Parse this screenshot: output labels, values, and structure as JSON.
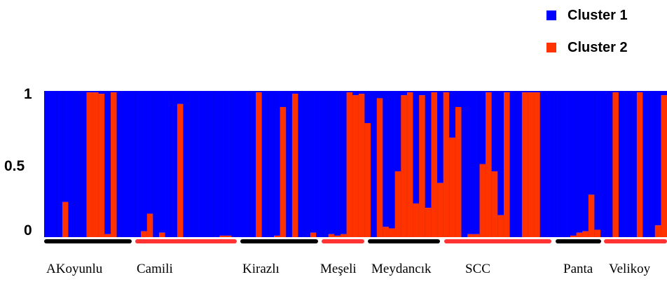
{
  "legend": [
    {
      "label": "Cluster 1",
      "color": "#0000ff"
    },
    {
      "label": "Cluster 2",
      "color": "#ff3300"
    }
  ],
  "chart_data": {
    "type": "bar",
    "stacked": true,
    "ylim": [
      0,
      1
    ],
    "yticks": [
      "1",
      "0.5",
      "0"
    ],
    "series": [
      {
        "name": "Cluster 1",
        "color": "#0000ff"
      },
      {
        "name": "Cluster 2",
        "color": "#ff3300"
      }
    ],
    "cluster2_values": [
      0,
      0,
      0,
      0.24,
      0,
      0,
      0,
      0.99,
      0.99,
      0.98,
      0.02,
      0.99,
      0,
      0,
      0,
      0,
      0.04,
      0.16,
      0,
      0.03,
      0,
      0,
      0.91,
      0,
      0,
      0,
      0,
      0,
      0,
      0.01,
      0.01,
      0,
      0,
      0,
      0,
      0.99,
      0,
      0,
      0.01,
      0.89,
      0,
      0.98,
      0,
      0,
      0.03,
      0,
      0,
      0.02,
      0.01,
      0.02,
      0.99,
      0.97,
      0.98,
      0.78,
      0,
      0.95,
      0.07,
      0.06,
      0.45,
      0.97,
      0.99,
      0.23,
      0.97,
      0.2,
      0.99,
      0.37,
      0.99,
      0.68,
      0.89,
      0,
      0.02,
      0.02,
      0.5,
      0.99,
      0.45,
      0.15,
      0.99,
      0,
      0,
      0.99,
      0.99,
      0.99,
      0,
      0,
      0,
      0,
      0,
      0.01,
      0.03,
      0.04,
      0.29,
      0.05,
      0,
      0,
      0.99,
      0,
      0,
      0,
      0.99,
      0,
      0,
      0.08,
      0.97
    ],
    "populations": [
      {
        "name": "AKoyunlu",
        "bar_color": "#000000"
      },
      {
        "name": "Camili",
        "bar_color": "#ff3333"
      },
      {
        "name": "Kirazlı",
        "bar_color": "#000000"
      },
      {
        "name": "Meşeli",
        "bar_color": "#ff3333"
      },
      {
        "name": "Meydancık",
        "bar_color": "#000000"
      },
      {
        "name": "SCC",
        "bar_color": "#ff3333"
      },
      {
        "name": "Panta",
        "bar_color": "#000000"
      },
      {
        "name": "Velikoy",
        "bar_color": "#ff3333"
      }
    ]
  }
}
